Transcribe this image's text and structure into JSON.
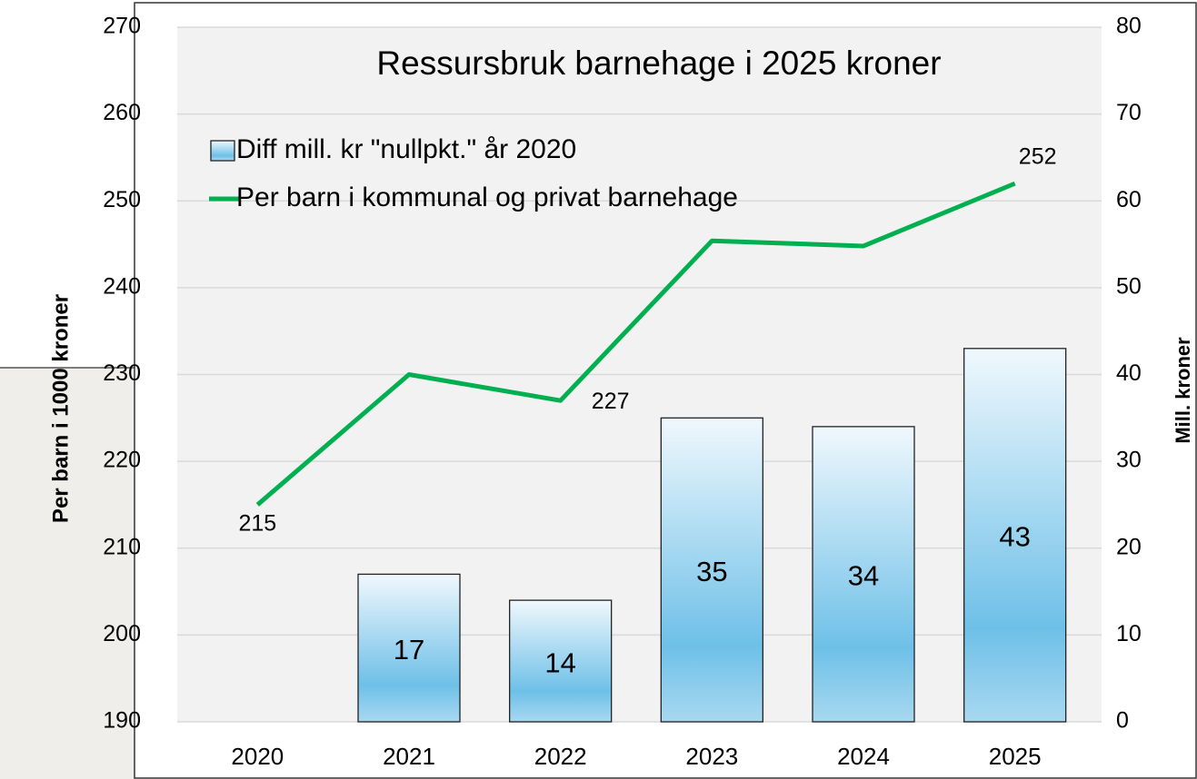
{
  "chart_data": {
    "type": "bar-line",
    "title": "Ressursbruk barnehage i 2025 kroner",
    "categories": [
      "2020",
      "2021",
      "2022",
      "2023",
      "2024",
      "2025"
    ],
    "ylabel": "Per barn i 1000 kroner",
    "y2label": "Mill. kroner",
    "ylim": [
      190,
      270
    ],
    "yticks": [
      190,
      200,
      210,
      220,
      230,
      240,
      250,
      260,
      270
    ],
    "y2lim": [
      0,
      80
    ],
    "y2ticks": [
      0,
      10,
      20,
      30,
      40,
      50,
      60,
      70,
      80
    ],
    "grid": true,
    "series": [
      {
        "name": "Diff mill. kr \"nullpkt.\" år 2020",
        "type": "bar",
        "axis": "y2",
        "color": "#6ec0e8",
        "values": [
          null,
          17,
          14,
          35,
          34,
          43
        ]
      },
      {
        "name": "Per barn i kommunal og privat barnehage",
        "type": "line",
        "color": "#00b050",
        "values": [
          215,
          230,
          227,
          245.4,
          244.8,
          252
        ],
        "value_labels": [
          "215",
          null,
          "227",
          null,
          null,
          "252"
        ]
      }
    ]
  }
}
